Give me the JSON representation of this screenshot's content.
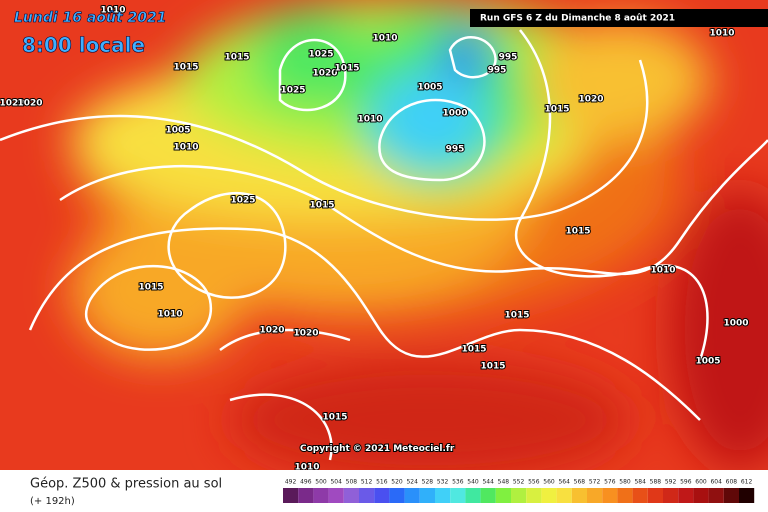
{
  "header": {
    "date": "Lundi 16 août 2021",
    "time": "8:00 locale",
    "run": "Run GFS 6 Z du Dimanche 8 août 2021"
  },
  "copyright": "Copyright © 2021 Meteociel.fr",
  "isobar_labels": [
    1010,
    1015,
    1025,
    1020,
    1015,
    1025,
    1010,
    995,
    995,
    1005,
    1000,
    1010,
    995,
    1015,
    1005,
    1010,
    1015,
    1020,
    1025,
    1015,
    1015,
    1010,
    1015,
    1010,
    1020,
    1020,
    1015,
    1015,
    1015,
    1000,
    1005,
    1015,
    1010,
    1020,
    1020,
    1010,
    1010
  ],
  "legend": {
    "title": "Géop. Z500 & pression au sol",
    "subtitle": "(+ 192h)",
    "levels": [
      492,
      496,
      500,
      504,
      508,
      512,
      516,
      520,
      524,
      528,
      532,
      536,
      540,
      544,
      548,
      552,
      556,
      560,
      564,
      568,
      572,
      576,
      580,
      584,
      588,
      592,
      596,
      600,
      604,
      608,
      612
    ],
    "colors": [
      "#5a1a5a",
      "#7a2a8a",
      "#8e3aa8",
      "#a04ac0",
      "#9060d8",
      "#6a5ae8",
      "#4a50f0",
      "#2a6af8",
      "#2a90fa",
      "#30b0fa",
      "#40d0f8",
      "#50e8e0",
      "#40e8a0",
      "#50e860",
      "#80f040",
      "#b0f040",
      "#d8f040",
      "#f0f040",
      "#f8e040",
      "#f8c030",
      "#f8a828",
      "#f89020",
      "#f07018",
      "#e85018",
      "#e03818",
      "#d02818",
      "#c01818",
      "#a81010",
      "#901010",
      "#600808",
      "#200000"
    ]
  }
}
